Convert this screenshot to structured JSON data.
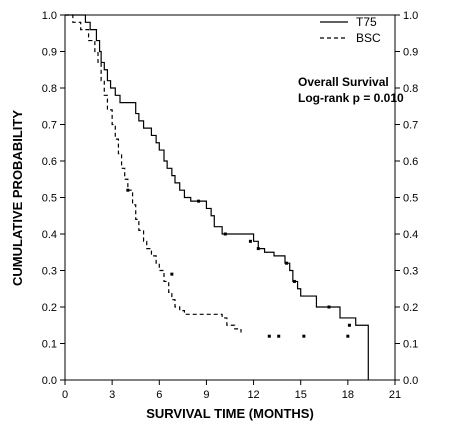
{
  "chart_data": {
    "type": "line",
    "title": "",
    "xlabel": "SURVIVAL TIME (MONTHS)",
    "ylabel": "CUMULATIVE PROBABILITY",
    "xlim": [
      0,
      21
    ],
    "ylim": [
      0,
      1
    ],
    "xticks": [
      0,
      3,
      6,
      9,
      12,
      15,
      18,
      21
    ],
    "yticks": [
      0.0,
      0.1,
      0.2,
      0.3,
      0.4,
      0.5,
      0.6,
      0.7,
      0.8,
      0.9,
      1.0
    ],
    "ytick_labels": [
      "0.0",
      "0.1",
      "0.2",
      "0.3",
      "0.4",
      "0.5",
      "0.6",
      "0.7",
      "0.8",
      "0.9",
      "1.0"
    ],
    "secondary_y_axis": true,
    "legend_position": "top-right",
    "annotation": [
      "Overall Survival",
      "Log-rank  p = 0.010"
    ],
    "series": [
      {
        "name": "T75",
        "style": "solid",
        "x": [
          0,
          1.3,
          1.6,
          2.0,
          2.2,
          2.3,
          2.5,
          2.7,
          2.9,
          3.2,
          3.5,
          4.0,
          4.5,
          4.7,
          5.0,
          5.5,
          5.8,
          6.0,
          6.3,
          6.5,
          6.8,
          7.0,
          7.3,
          7.6,
          8.0,
          8.5,
          9.0,
          9.3,
          9.5,
          10.0,
          11.5,
          12.0,
          12.3,
          12.7,
          13.3,
          14.0,
          14.3,
          14.5,
          14.8,
          15.0,
          16.0,
          17.5,
          18.5,
          19.3,
          19.3
        ],
        "y": [
          1.0,
          0.98,
          0.96,
          0.93,
          0.9,
          0.87,
          0.85,
          0.82,
          0.8,
          0.78,
          0.76,
          0.76,
          0.73,
          0.71,
          0.69,
          0.67,
          0.65,
          0.63,
          0.6,
          0.58,
          0.56,
          0.54,
          0.52,
          0.5,
          0.49,
          0.49,
          0.47,
          0.45,
          0.42,
          0.4,
          0.4,
          0.38,
          0.36,
          0.35,
          0.34,
          0.32,
          0.3,
          0.27,
          0.25,
          0.23,
          0.2,
          0.17,
          0.15,
          0.15,
          0.0
        ],
        "censor_x": [
          8.5,
          10.2,
          11.8,
          12.3,
          14.1,
          14.6,
          16.8,
          18.1
        ],
        "censor_y": [
          0.49,
          0.4,
          0.38,
          0.36,
          0.32,
          0.27,
          0.2,
          0.15
        ]
      },
      {
        "name": "BSC",
        "style": "dashed",
        "x": [
          0,
          0.5,
          1.0,
          1.5,
          1.9,
          2.1,
          2.3,
          2.5,
          2.7,
          3.0,
          3.2,
          3.4,
          3.6,
          3.8,
          4.0,
          4.3,
          4.5,
          4.7,
          5.0,
          5.2,
          5.5,
          5.8,
          6.0,
          6.3,
          6.6,
          6.8,
          7.0,
          7.3,
          7.6,
          8.0,
          9.0,
          10.0,
          10.3,
          10.8,
          11.2
        ],
        "y": [
          1.0,
          0.98,
          0.96,
          0.93,
          0.9,
          0.87,
          0.82,
          0.78,
          0.74,
          0.7,
          0.66,
          0.62,
          0.58,
          0.55,
          0.52,
          0.48,
          0.44,
          0.41,
          0.38,
          0.36,
          0.34,
          0.32,
          0.3,
          0.27,
          0.24,
          0.22,
          0.2,
          0.19,
          0.18,
          0.18,
          0.18,
          0.17,
          0.15,
          0.14,
          0.13
        ],
        "censor_x": [
          4.0,
          6.8,
          13.0,
          13.6,
          15.2,
          18.0
        ],
        "censor_y": [
          0.52,
          0.29,
          0.12,
          0.12,
          0.12,
          0.12
        ]
      }
    ]
  }
}
